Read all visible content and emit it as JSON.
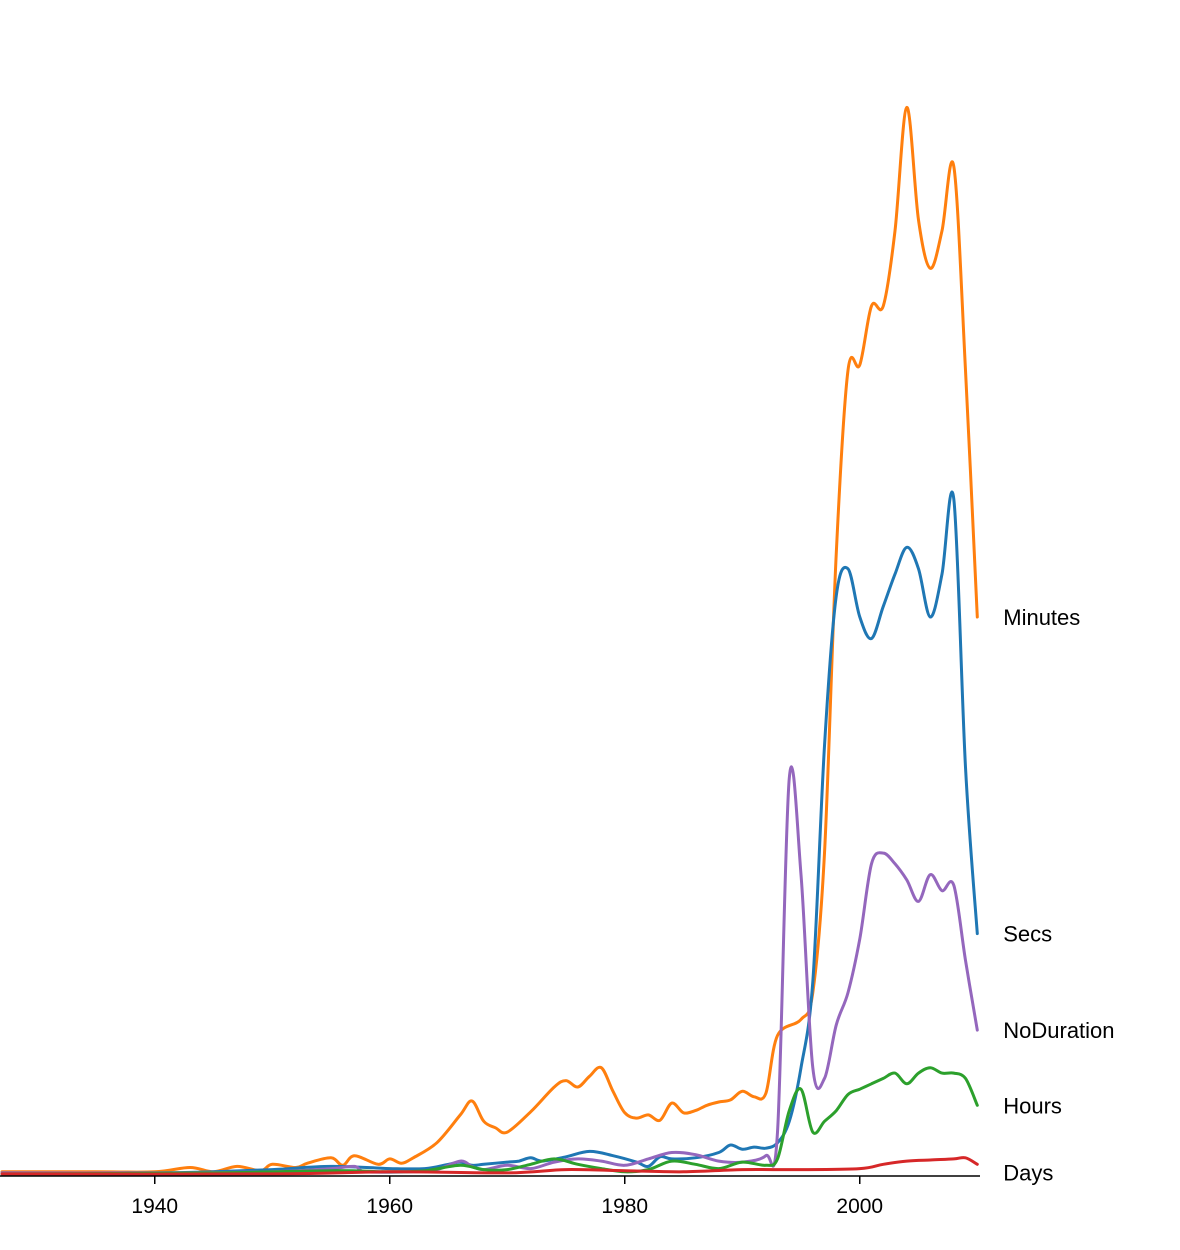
{
  "chart_data": {
    "type": "line",
    "title": "",
    "xlabel": "",
    "ylabel": "",
    "xlim": [
      1927,
      2010
    ],
    "ylim": [
      0,
      100
    ],
    "x_ticks": [
      "1940",
      "1960",
      "1980",
      "2000"
    ],
    "y_axis_visible": false,
    "grid": false,
    "legend": "inline labels at line ends (right)",
    "series": [
      {
        "name": "Minutes",
        "color": "#ff7f0e",
        "points": [
          [
            1927,
            0.3
          ],
          [
            1935,
            0.3
          ],
          [
            1940,
            0.3
          ],
          [
            1943,
            0.7
          ],
          [
            1945,
            0.3
          ],
          [
            1947,
            0.8
          ],
          [
            1949,
            0.4
          ],
          [
            1950,
            1.0
          ],
          [
            1952,
            0.7
          ],
          [
            1953,
            1.1
          ],
          [
            1955,
            1.6
          ],
          [
            1956,
            0.9
          ],
          [
            1957,
            1.8
          ],
          [
            1959,
            1.0
          ],
          [
            1960,
            1.5
          ],
          [
            1961,
            1.1
          ],
          [
            1962,
            1.6
          ],
          [
            1964,
            3.0
          ],
          [
            1966,
            5.6
          ],
          [
            1967,
            6.9
          ],
          [
            1968,
            5.0
          ],
          [
            1969,
            4.4
          ],
          [
            1970,
            4.0
          ],
          [
            1972,
            5.9
          ],
          [
            1974,
            8.2
          ],
          [
            1975,
            8.8
          ],
          [
            1976,
            8.2
          ],
          [
            1977,
            9.2
          ],
          [
            1978,
            10.0
          ],
          [
            1979,
            7.8
          ],
          [
            1980,
            5.8
          ],
          [
            1981,
            5.3
          ],
          [
            1982,
            5.6
          ],
          [
            1983,
            5.1
          ],
          [
            1984,
            6.7
          ],
          [
            1985,
            5.8
          ],
          [
            1986,
            6.0
          ],
          [
            1987,
            6.5
          ],
          [
            1988,
            6.8
          ],
          [
            1989,
            7.0
          ],
          [
            1990,
            7.8
          ],
          [
            1991,
            7.3
          ],
          [
            1992,
            7.6
          ],
          [
            1993,
            13.0
          ],
          [
            1995,
            14.5
          ],
          [
            1996,
            17.0
          ],
          [
            1997,
            30.0
          ],
          [
            1998,
            58.0
          ],
          [
            1999,
            75.0
          ],
          [
            2000,
            75.5
          ],
          [
            2001,
            81.0
          ],
          [
            2002,
            81.0
          ],
          [
            2003,
            88.0
          ],
          [
            2004,
            99.5
          ],
          [
            2005,
            89.0
          ],
          [
            2006,
            84.5
          ],
          [
            2007,
            88.0
          ],
          [
            2008,
            94.0
          ],
          [
            2009,
            75.0
          ],
          [
            2010,
            52.0
          ]
        ]
      },
      {
        "name": "Secs",
        "color": "#1f77b4",
        "points": [
          [
            1927,
            0.2
          ],
          [
            1940,
            0.2
          ],
          [
            1945,
            0.3
          ],
          [
            1950,
            0.5
          ],
          [
            1955,
            0.8
          ],
          [
            1960,
            0.6
          ],
          [
            1963,
            0.6
          ],
          [
            1965,
            1.0
          ],
          [
            1966,
            1.2
          ],
          [
            1967,
            0.9
          ],
          [
            1968,
            1.0
          ],
          [
            1970,
            1.2
          ],
          [
            1971,
            1.3
          ],
          [
            1972,
            1.6
          ],
          [
            1973,
            1.3
          ],
          [
            1975,
            1.7
          ],
          [
            1977,
            2.2
          ],
          [
            1979,
            1.8
          ],
          [
            1981,
            1.2
          ],
          [
            1982,
            0.8
          ],
          [
            1983,
            1.7
          ],
          [
            1984,
            1.5
          ],
          [
            1986,
            1.6
          ],
          [
            1988,
            2.1
          ],
          [
            1989,
            2.8
          ],
          [
            1990,
            2.4
          ],
          [
            1991,
            2.6
          ],
          [
            1992,
            2.5
          ],
          [
            1993,
            3.0
          ],
          [
            1994,
            5.0
          ],
          [
            1995,
            10.0
          ],
          [
            1996,
            18.0
          ],
          [
            1997,
            40.0
          ],
          [
            1998,
            54.0
          ],
          [
            1999,
            56.5
          ],
          [
            2000,
            52.0
          ],
          [
            2001,
            50.0
          ],
          [
            2002,
            53.0
          ],
          [
            2003,
            56.0
          ],
          [
            2004,
            58.5
          ],
          [
            2005,
            56.5
          ],
          [
            2006,
            52.0
          ],
          [
            2007,
            56.0
          ],
          [
            2008,
            63.0
          ],
          [
            2009,
            38.0
          ],
          [
            2010,
            22.5
          ]
        ]
      },
      {
        "name": "NoDuration",
        "color": "#9467bd",
        "points": [
          [
            1927,
            0.2
          ],
          [
            1940,
            0.2
          ],
          [
            1950,
            0.3
          ],
          [
            1955,
            0.6
          ],
          [
            1957,
            0.8
          ],
          [
            1958,
            0.3
          ],
          [
            1962,
            0.3
          ],
          [
            1964,
            0.5
          ],
          [
            1966,
            1.3
          ],
          [
            1967,
            0.8
          ],
          [
            1968,
            0.5
          ],
          [
            1970,
            0.9
          ],
          [
            1972,
            0.6
          ],
          [
            1974,
            1.2
          ],
          [
            1976,
            1.5
          ],
          [
            1978,
            1.3
          ],
          [
            1980,
            0.9
          ],
          [
            1982,
            1.5
          ],
          [
            1984,
            2.1
          ],
          [
            1986,
            1.9
          ],
          [
            1988,
            1.3
          ],
          [
            1990,
            1.2
          ],
          [
            1992,
            1.8
          ],
          [
            1993,
            4.0
          ],
          [
            1994,
            37.0
          ],
          [
            1995,
            28.0
          ],
          [
            1996,
            10.0
          ],
          [
            1997,
            9.0
          ],
          [
            1998,
            14.0
          ],
          [
            1999,
            17.0
          ],
          [
            2000,
            22.0
          ],
          [
            2001,
            29.0
          ],
          [
            2002,
            30.0
          ],
          [
            2003,
            29.0
          ],
          [
            2004,
            27.5
          ],
          [
            2005,
            25.5
          ],
          [
            2006,
            28.0
          ],
          [
            2007,
            26.5
          ],
          [
            2008,
            27.0
          ],
          [
            2009,
            20.0
          ],
          [
            2010,
            13.5
          ]
        ]
      },
      {
        "name": "Hours",
        "color": "#2ca02c",
        "points": [
          [
            1927,
            0.1
          ],
          [
            1945,
            0.2
          ],
          [
            1955,
            0.4
          ],
          [
            1960,
            0.3
          ],
          [
            1963,
            0.4
          ],
          [
            1966,
            0.9
          ],
          [
            1968,
            0.5
          ],
          [
            1970,
            0.5
          ],
          [
            1972,
            1.0
          ],
          [
            1974,
            1.5
          ],
          [
            1976,
            1.0
          ],
          [
            1978,
            0.6
          ],
          [
            1980,
            0.3
          ],
          [
            1982,
            0.5
          ],
          [
            1984,
            1.3
          ],
          [
            1986,
            1.0
          ],
          [
            1988,
            0.6
          ],
          [
            1990,
            1.2
          ],
          [
            1992,
            0.9
          ],
          [
            1993,
            1.5
          ],
          [
            1994,
            6.0
          ],
          [
            1995,
            8.0
          ],
          [
            1996,
            4.0
          ],
          [
            1997,
            5.0
          ],
          [
            1998,
            6.0
          ],
          [
            1999,
            7.5
          ],
          [
            2000,
            8.0
          ],
          [
            2001,
            8.5
          ],
          [
            2002,
            9.0
          ],
          [
            2003,
            9.5
          ],
          [
            2004,
            8.5
          ],
          [
            2005,
            9.5
          ],
          [
            2006,
            10.0
          ],
          [
            2007,
            9.5
          ],
          [
            2008,
            9.5
          ],
          [
            2009,
            9.0
          ],
          [
            2010,
            6.5
          ]
        ]
      },
      {
        "name": "Days",
        "color": "#d62728",
        "points": [
          [
            1927,
            0.1
          ],
          [
            1950,
            0.1
          ],
          [
            1960,
            0.3
          ],
          [
            1970,
            0.2
          ],
          [
            1975,
            0.5
          ],
          [
            1980,
            0.4
          ],
          [
            1985,
            0.3
          ],
          [
            1990,
            0.5
          ],
          [
            1995,
            0.5
          ],
          [
            2000,
            0.6
          ],
          [
            2002,
            1.0
          ],
          [
            2004,
            1.3
          ],
          [
            2006,
            1.4
          ],
          [
            2008,
            1.5
          ],
          [
            2009,
            1.6
          ],
          [
            2010,
            1.0
          ]
        ]
      }
    ]
  }
}
